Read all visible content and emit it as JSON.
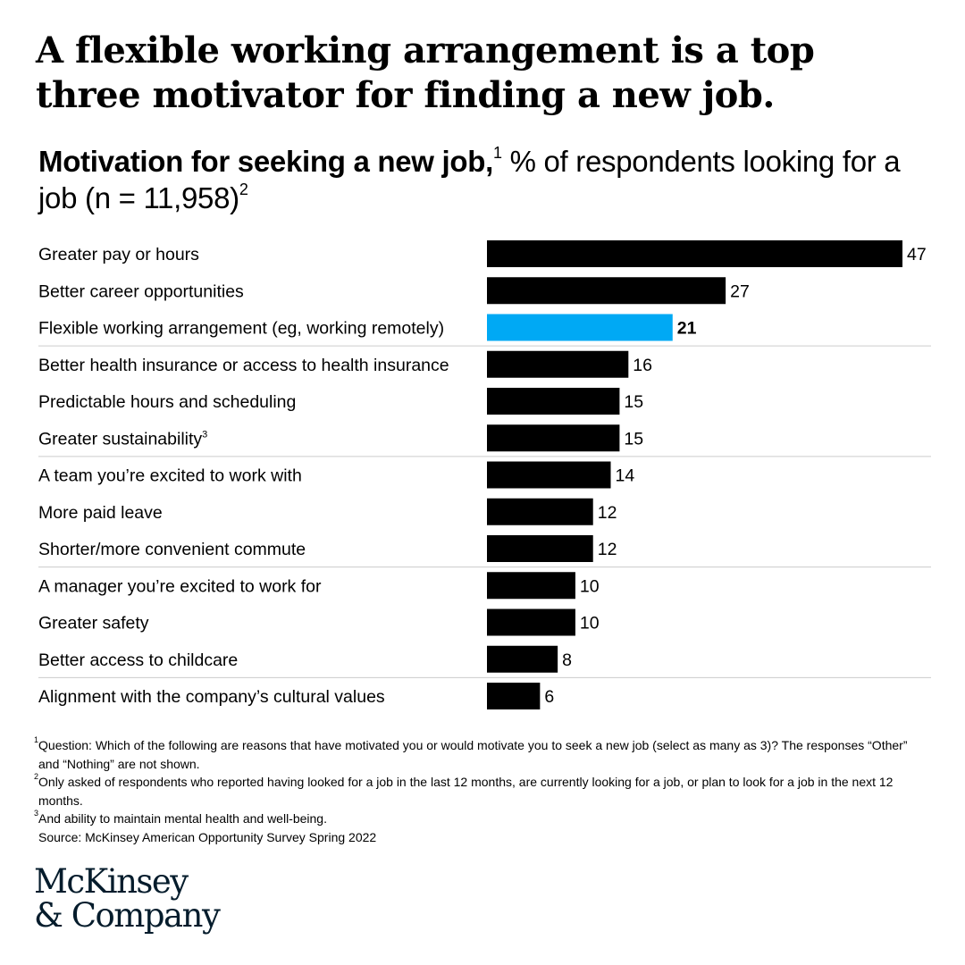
{
  "headline": "A flexible working arrangement is a top three motivator for finding a new job.",
  "subtitle": {
    "bold": "Motivation for seeking a new job,",
    "sup": "1",
    "rest": " % of respondents looking for a job (n = 11,958)",
    "sup2": "2"
  },
  "chart_data": {
    "type": "bar",
    "orientation": "horizontal",
    "title": "Motivation for seeking a new job, % of respondents looking for a job (n = 11,958)",
    "categories": [
      "Greater pay or hours",
      "Better career opportunities",
      "Flexible working arrangement (eg, working remotely)",
      "Better health insurance or access to health insurance",
      "Predictable hours and scheduling",
      "Greater sustainability",
      "A team you’re excited to work with",
      "More paid leave",
      "Shorter/more convenient commute",
      "A manager you’re excited to work for",
      "Greater safety",
      "Better access to childcare",
      "Alignment with the company’s cultural values"
    ],
    "category_superscripts": [
      "",
      "",
      "",
      "",
      "",
      "3",
      "",
      "",
      "",
      "",
      "",
      "",
      ""
    ],
    "values": [
      47,
      27,
      21,
      16,
      15,
      15,
      14,
      12,
      12,
      10,
      10,
      8,
      6
    ],
    "highlight_index": 2,
    "colors": {
      "bar": "#000000",
      "highlight": "#00a9f4",
      "divider": "#cccccc"
    },
    "group_dividers_after": [
      2,
      5,
      8,
      11
    ],
    "xlim": [
      0,
      47
    ]
  },
  "footnotes": [
    {
      "sup": "1",
      "text": "Question: Which of the following are reasons that have motivated you or would motivate you to seek a new job (select as many as 3)? The responses “Other” and “Nothing” are not shown."
    },
    {
      "sup": "2",
      "text": "Only asked of respondents who reported having looked for a job in the last 12 months, are currently looking for a job, or plan to look for a job in the next 12 months."
    },
    {
      "sup": "3",
      "text": "And ability to maintain mental health and well-being."
    }
  ],
  "source": "Source: McKinsey American Opportunity Survey Spring 2022",
  "logo": {
    "line1": "McKinsey",
    "line2": "& Company"
  }
}
